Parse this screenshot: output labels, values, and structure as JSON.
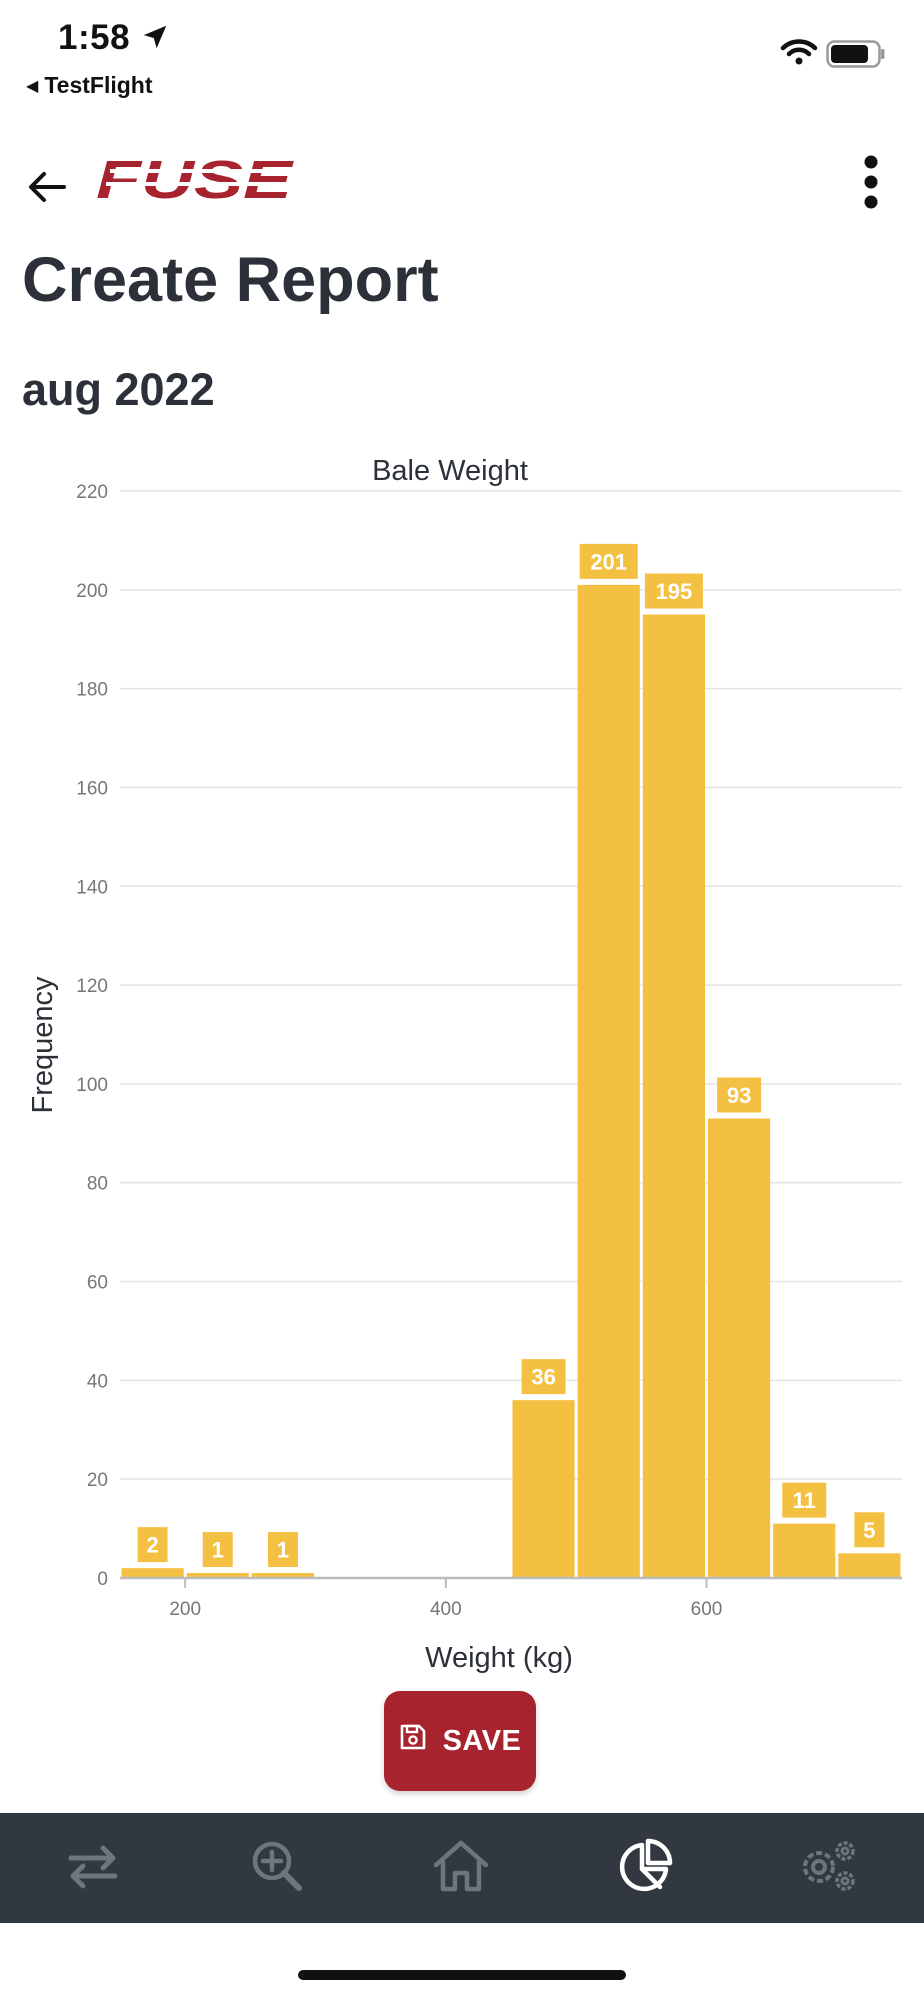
{
  "status_bar": {
    "time": "1:58",
    "back_app": "TestFlight",
    "icons": [
      "location-arrow-icon",
      "wifi-icon",
      "battery-icon"
    ]
  },
  "header": {
    "logo_text": "FUSE",
    "back_icon": "arrow-left-icon",
    "menu_icon": "more-vertical-icon",
    "brand_color": "#a7242e"
  },
  "page": {
    "title": "Create Report",
    "subtitle": "aug 2022"
  },
  "chart_data": {
    "type": "bar",
    "title": "Bale Weight",
    "xlabel": "Weight (kg)",
    "ylabel": "Frequency",
    "bar_color": "#f4c042",
    "ylim": [
      0,
      220
    ],
    "y_ticks": [
      0,
      20,
      40,
      60,
      80,
      100,
      120,
      140,
      160,
      180,
      200,
      220
    ],
    "xlim": [
      150,
      750
    ],
    "x_ticks": [
      200,
      400,
      600
    ],
    "bins": [
      {
        "x0": 150,
        "x1": 200,
        "value": 2
      },
      {
        "x0": 200,
        "x1": 250,
        "value": 1
      },
      {
        "x0": 250,
        "x1": 300,
        "value": 1
      },
      {
        "x0": 300,
        "x1": 350,
        "value": 0
      },
      {
        "x0": 350,
        "x1": 400,
        "value": 0
      },
      {
        "x0": 400,
        "x1": 450,
        "value": 0
      },
      {
        "x0": 450,
        "x1": 500,
        "value": 36
      },
      {
        "x0": 500,
        "x1": 550,
        "value": 201
      },
      {
        "x0": 550,
        "x1": 600,
        "value": 195
      },
      {
        "x0": 600,
        "x1": 650,
        "value": 93
      },
      {
        "x0": 650,
        "x1": 700,
        "value": 11
      },
      {
        "x0": 700,
        "x1": 750,
        "value": 5
      }
    ],
    "grid": true,
    "legend": "none"
  },
  "actions": {
    "save_label": "SAVE",
    "save_icon": "floppy-disk-icon"
  },
  "bottom_nav": {
    "items": [
      {
        "name": "transfer",
        "icon": "transfer-arrows-icon",
        "active": false
      },
      {
        "name": "search",
        "icon": "zoom-in-icon",
        "active": false
      },
      {
        "name": "home",
        "icon": "home-icon",
        "active": false
      },
      {
        "name": "reports",
        "icon": "pie-chart-icon",
        "active": true
      },
      {
        "name": "settings",
        "icon": "gears-icon",
        "active": false
      }
    ],
    "active_color": "#ffffff",
    "inactive_color": "#6f757d"
  }
}
